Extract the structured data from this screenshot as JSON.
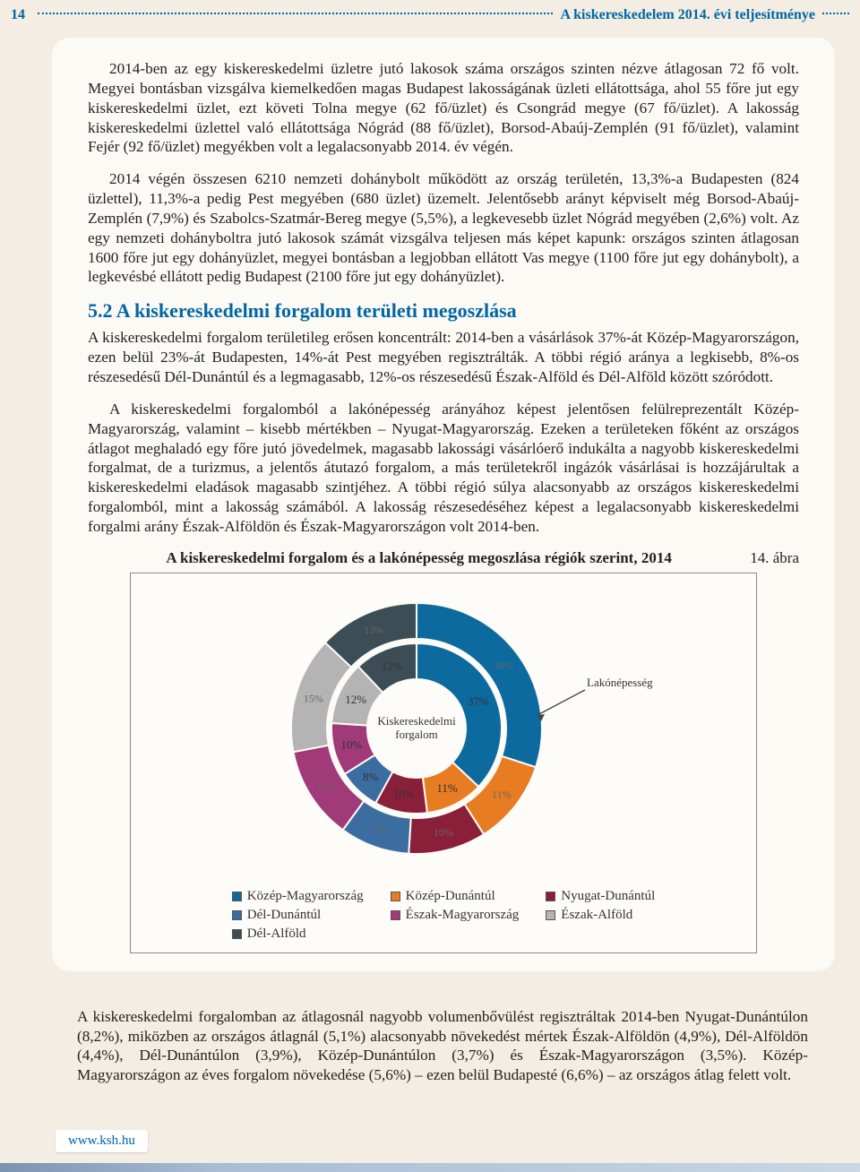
{
  "header": {
    "page_number": "14",
    "title": "A kiskereskedelem 2014. évi teljesítménye"
  },
  "paragraph1": "2014-ben az egy kiskereskedelmi üzletre jutó lakosok száma országos szinten nézve átlagosan 72 fő volt. Megyei bontásban vizsgálva kiemelkedően magas Budapest lakosságának üzleti ellátottsága, ahol 55 főre jut egy kiskereskedelmi üzlet, ezt követi Tolna megye (62 fő/üzlet) és Csongrád megye (67 fő/üzlet). A lakosság kiskereskedelmi üzlettel való ellátottsága Nógrád (88 fő/üzlet), Borsod-Abaúj-Zemplén (91 fő/üzlet), valamint Fejér (92 fő/üzlet) megyékben volt a legalacsonyabb 2014. év végén.",
  "paragraph2": "2014 végén összesen 6210 nemzeti dohánybolt működött az ország területén, 13,3%-a Budapesten (824 üzlettel), 11,3%-a pedig Pest megyében (680 üzlet) üzemelt. Jelentősebb arányt képviselt még Borsod-Abaúj-Zemplén (7,9%) és Szabolcs-Szatmár-Bereg megye (5,5%), a legkevesebb üzlet Nógrád megyében (2,6%) volt. Az egy nemzeti dohányboltra jutó lakosok számát vizsgálva teljesen más képet kapunk: országos szinten átlagosan 1600 főre jut egy dohányüzlet, megyei bontásban a legjobban ellátott Vas megye (1100 főre jut egy dohánybolt), a legkevésbé ellátott pedig Budapest (2100 főre jut egy dohányüzlet).",
  "section_title": "5.2 A kiskereskedelmi forgalom területi megoszlása",
  "paragraph3": "A kiskereskedelmi forgalom területileg erősen koncentrált: 2014-ben a vásárlások 37%-át Közép-Magyarországon, ezen belül 23%-át Budapesten, 14%-át Pest megyében regisztrálták. A többi régió aránya a legkisebb, 8%-os részesedésű Dél-Dunántúl és a legmagasabb, 12%-os részesedésű Észak-Alföld és Dél-Alföld között szóródott.",
  "paragraph4": "A kiskereskedelmi forgalomból a lakónépesség arányához képest jelentősen felülreprezentált Közép-Magyarország, valamint – kisebb mértékben – Nyugat-Magyarország. Ezeken a területeken főként az országos átlagot meghaladó egy főre jutó jövedelmek, magasabb lakossági vásárlóerő indukálta a nagyobb kiskereskedelmi forgalmat, de a turizmus, a jelentős átutazó forgalom, a más területekről ingázók vásárlásai is hozzájárultak a kiskereskedelmi eladások magasabb szintjéhez. A többi régió súlya alacsonyabb az országos kiskereskedelmi forgalomból, mint a lakosság számából. A lakosság részesedéséhez képest a legalacsonyabb kiskereskedelmi forgalmi arány Észak-Alföldön és Észak-Magyarországon volt 2014-ben.",
  "figure": {
    "number": "14. ábra",
    "title": "A kiskereskedelmi forgalom és a lakónépesség megoszlása régiók szerint, 2014",
    "inner_label": "Kiskereskedelmi\nforgalom",
    "outer_label": "Lakónépesség",
    "rings": {
      "inner": [
        {
          "name": "Közép-Magyarország",
          "value": 37,
          "label": "37%",
          "color": "#0c6a9e"
        },
        {
          "name": "Közép-Dunántúl",
          "value": 11,
          "label": "11%",
          "color": "#e77c22"
        },
        {
          "name": "Nyugat-Dunántúl",
          "value": 10,
          "label": "10%",
          "color": "#8a1f3a"
        },
        {
          "name": "Dél-Dunántúl",
          "value": 8,
          "label": "8%",
          "color": "#3b6da0"
        },
        {
          "name": "Észak-Magyarország",
          "value": 10,
          "label": "10%",
          "color": "#a13a78"
        },
        {
          "name": "Észak-Alföld",
          "value": 12,
          "label": "12%",
          "color": "#b4b4b4"
        },
        {
          "name": "Dél-Alföld",
          "value": 12,
          "label": "12%",
          "color": "#3d4d56"
        }
      ],
      "outer": [
        {
          "name": "Közép-Magyarország",
          "value": 30,
          "label": "30%",
          "color": "#0c6a9e"
        },
        {
          "name": "Közép-Dunántúl",
          "value": 11,
          "label": "11%",
          "color": "#e77c22"
        },
        {
          "name": "Nyugat-Dunántúl",
          "value": 10,
          "label": "10%",
          "color": "#8a1f3a"
        },
        {
          "name": "Dél-Dunántúl",
          "value": 9,
          "label": "9%",
          "color": "#3b6da0"
        },
        {
          "name": "Észak-Magyarország",
          "value": 12,
          "label": "12%",
          "color": "#a13a78"
        },
        {
          "name": "Észak-Alföld",
          "value": 15,
          "label": "15%",
          "color": "#b4b4b4"
        },
        {
          "name": "Dél-Alföld",
          "value": 13,
          "label": "13%",
          "color": "#3d4d56"
        }
      ]
    },
    "legend": [
      {
        "label": "Közép-Magyarország",
        "color": "#0c6a9e"
      },
      {
        "label": "Közép-Dunántúl",
        "color": "#e77c22"
      },
      {
        "label": "Nyugat-Dunántúl",
        "color": "#8a1f3a"
      },
      {
        "label": "Dél-Dunántúl",
        "color": "#3b6da0"
      },
      {
        "label": "Észak-Magyarország",
        "color": "#a13a78"
      },
      {
        "label": "Észak-Alföld",
        "color": "#b4b4b4"
      },
      {
        "label": "Dél-Alföld",
        "color": "#3d4d56"
      }
    ]
  },
  "paragraph5": "A kiskereskedelmi forgalomban az átlagosnál nagyobb volumenbővülést regisztráltak 2014-ben Nyugat-Dunántúlon (8,2%), miközben az országos átlagnál (5,1%) alacsonyabb növekedést mértek Észak-Alföldön (4,9%), Dél-Alföldön (4,4%), Dél-Dunántúlon (3,9%), Közép-Dunántúlon (3,7%) és Észak-Magyarországon (3,5%). Közép-Magyarországon az éves forgalom növekedése (5,6%) – ezen belül Budapesté (6,6%) – az országos átlag felett volt.",
  "footer_link": "www.ksh.hu"
}
